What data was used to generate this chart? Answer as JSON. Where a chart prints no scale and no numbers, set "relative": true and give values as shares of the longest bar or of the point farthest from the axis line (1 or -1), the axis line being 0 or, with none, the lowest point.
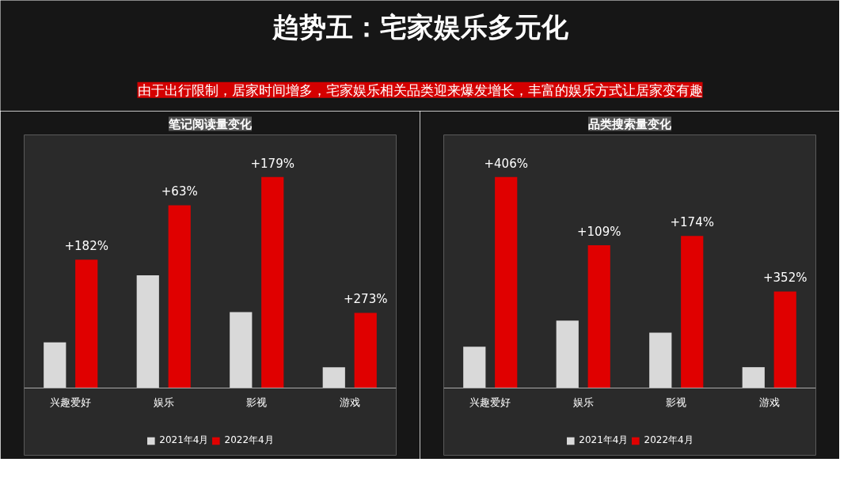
{
  "chart_data": [
    {
      "type": "other",
      "title": "趋势五：宅家娱乐多元化",
      "subtitle": "由于出行限制，居家时间增多，宅家娱乐相关品类迎来爆发增长，丰富的娱乐方式让居家变有趣"
    },
    {
      "type": "bar",
      "title": "笔记阅读量变化",
      "relative": true,
      "categories": [
        "兴趣爱好",
        "娱乐",
        "影视",
        "游戏"
      ],
      "series": [
        {
          "name": "2021年4月",
          "color": "#d9d9d9",
          "values": [
            0.216,
            0.534,
            0.359,
            0.098
          ]
        },
        {
          "name": "2022年4月",
          "color": "#e00000",
          "values": [
            0.608,
            0.866,
            1,
            0.356
          ]
        }
      ],
      "annotations": [
        "+182%",
        "+63%",
        "+179%",
        "+273%"
      ],
      "legend": "bottom",
      "grid": false
    },
    {
      "type": "bar",
      "title": "品类搜索量变化",
      "relative": true,
      "categories": [
        "兴趣爱好",
        "娱乐",
        "影视",
        "游戏"
      ],
      "series": [
        {
          "name": "2021年4月",
          "color": "#d9d9d9",
          "values": [
            0.195,
            0.319,
            0.262,
            0.098
          ]
        },
        {
          "name": "2022年4月",
          "color": "#e00000",
          "values": [
            1,
            0.676,
            0.721,
            0.457
          ]
        }
      ],
      "annotations": [
        "+406%",
        "+109%",
        "+174%",
        "+352%"
      ],
      "legend": "bottom",
      "grid": false
    }
  ]
}
